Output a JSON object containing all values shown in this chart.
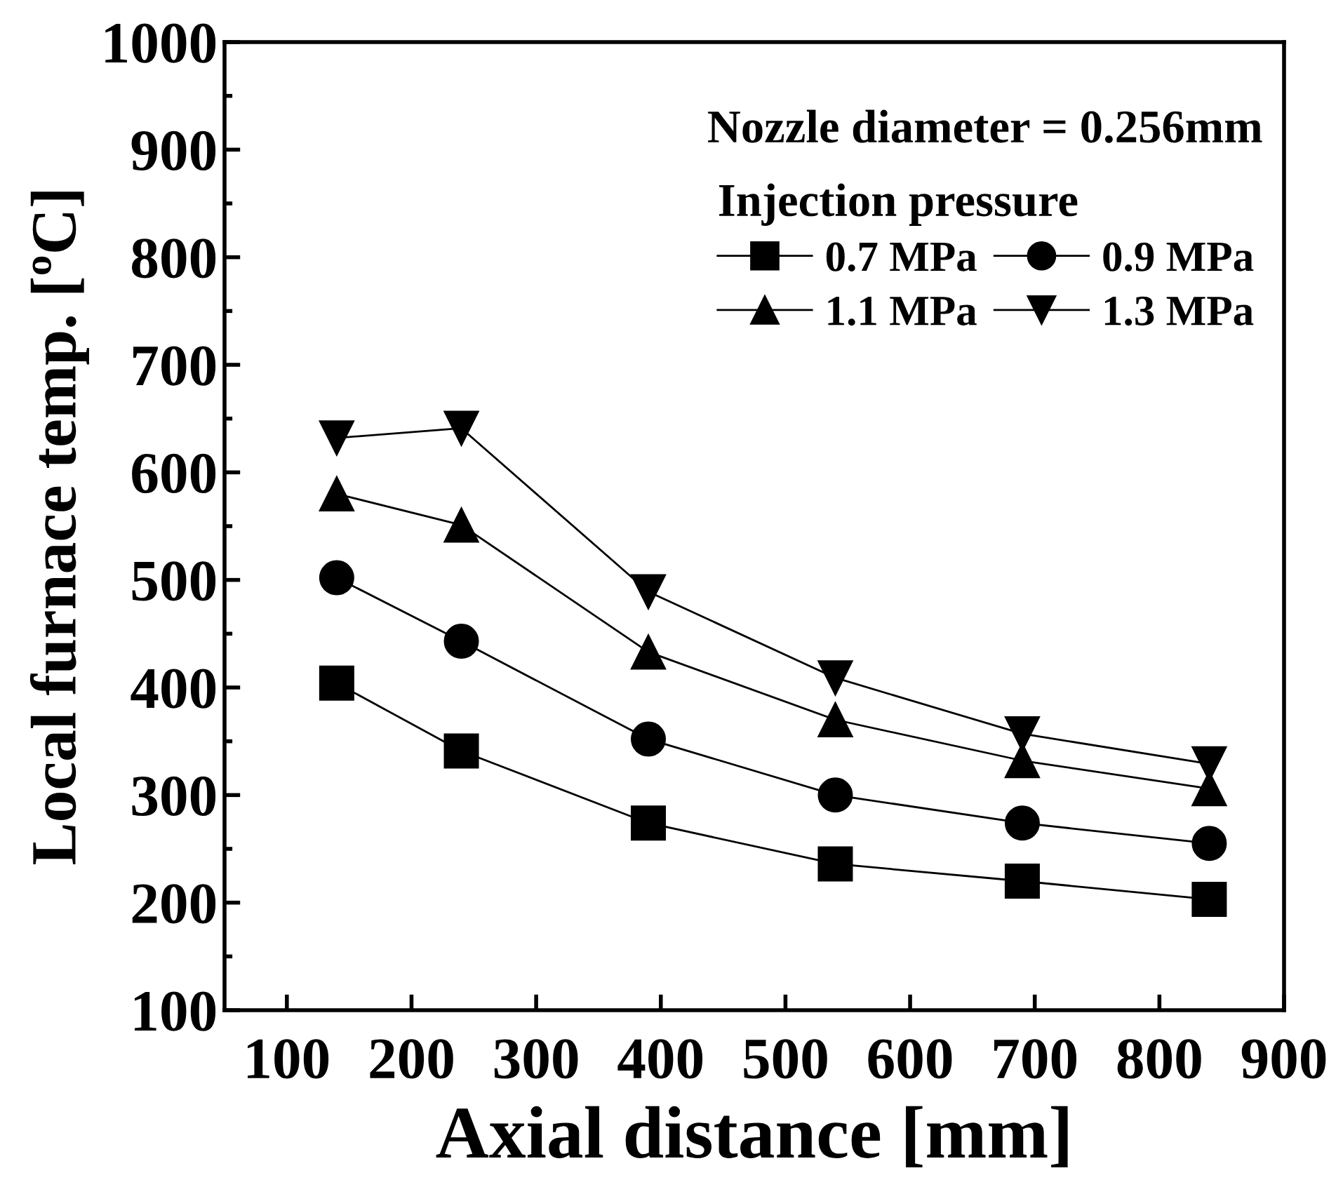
{
  "chart_data": {
    "type": "line",
    "xlabel": "Axial distance [mm]",
    "ylabel": "Local furnace temp. [ºC]",
    "legend_title": "Injection pressure",
    "annotations": [
      "Nozzle diameter = 0.256mm"
    ],
    "x": [
      140,
      240,
      390,
      540,
      690,
      840
    ],
    "series": [
      {
        "name": "0.7 MPa",
        "color": "#000000",
        "marker": "square",
        "values": [
          404,
          341,
          274,
          236,
          220,
          203
        ]
      },
      {
        "name": "0.9 MPa",
        "color": "#000000",
        "marker": "circle",
        "values": [
          502,
          443,
          352,
          300,
          274,
          255
        ]
      },
      {
        "name": "1.1 MPa",
        "color": "#000000",
        "marker": "triangle",
        "values": [
          580,
          551,
          433,
          370,
          332,
          306
        ]
      },
      {
        "name": "1.3 MPa",
        "color": "#000000",
        "marker": "triangle_down",
        "values": [
          632,
          641,
          489,
          409,
          357,
          329
        ]
      }
    ],
    "xlim": [
      50,
      900
    ],
    "xticks": [
      100,
      200,
      300,
      400,
      500,
      600,
      700,
      800,
      900
    ],
    "ylim": [
      100,
      1000
    ],
    "yticks": [
      100,
      {
        "value": 150,
        "label": null
      },
      200,
      {
        "value": 250,
        "label": null
      },
      300,
      {
        "value": 350,
        "label": null
      },
      400,
      {
        "value": 450,
        "label": null
      },
      500,
      {
        "value": 550,
        "label": null
      },
      600,
      {
        "value": 650,
        "label": null
      },
      700,
      {
        "value": 750,
        "label": null
      },
      800,
      {
        "value": 850,
        "label": null
      },
      900,
      {
        "value": 950,
        "label": null
      },
      1000
    ],
    "grid": false,
    "legend": "top right",
    "line_style": "solid"
  }
}
